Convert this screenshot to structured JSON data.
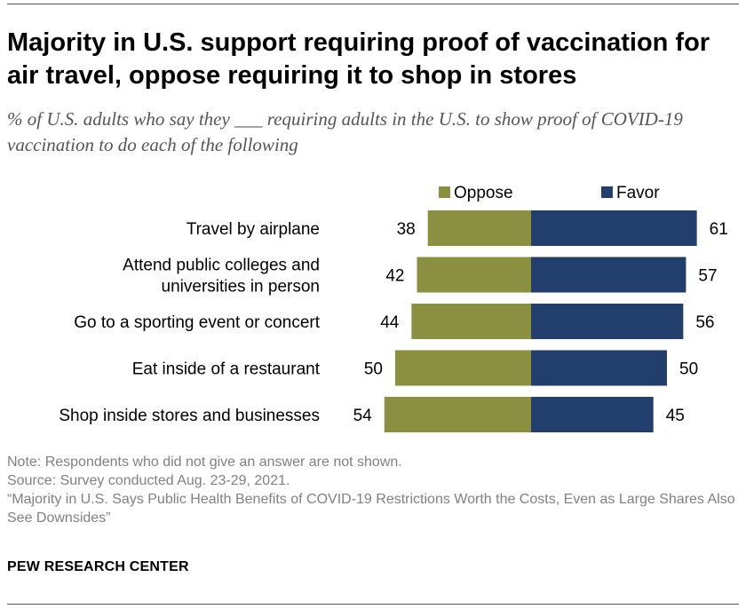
{
  "title": "Majority in U.S. support requiring proof of vaccination for air travel, oppose requiring it to shop in stores",
  "subtitle": "% of U.S. adults who say they ___ requiring adults in the U.S. to show proof of COVID-19 vaccination to do each of the following",
  "colors": {
    "oppose": "#8a9040",
    "favor": "#223e6d"
  },
  "chart_data": {
    "type": "bar",
    "orientation": "horizontal-diverging",
    "categories": [
      [
        "Travel by airplane"
      ],
      [
        "Attend public colleges and",
        "universities in person"
      ],
      [
        "Go to a sporting event or concert"
      ],
      [
        "Eat inside of a restaurant"
      ],
      [
        "Shop inside stores and businesses"
      ]
    ],
    "series": [
      {
        "name": "Oppose",
        "values": [
          38,
          42,
          44,
          50,
          54
        ]
      },
      {
        "name": "Favor",
        "values": [
          61,
          57,
          56,
          50,
          45
        ]
      }
    ],
    "legend": "top"
  },
  "notes": {
    "note": "Note: Respondents who did not give an answer are not shown.",
    "source": "Source: Survey conducted Aug. 23-29, 2021.",
    "report": "“Majority in U.S. Says Public Health Benefits of COVID-19 Restrictions Worth the Costs, Even as Large Shares Also See Downsides”"
  },
  "org": "PEW RESEARCH CENTER"
}
